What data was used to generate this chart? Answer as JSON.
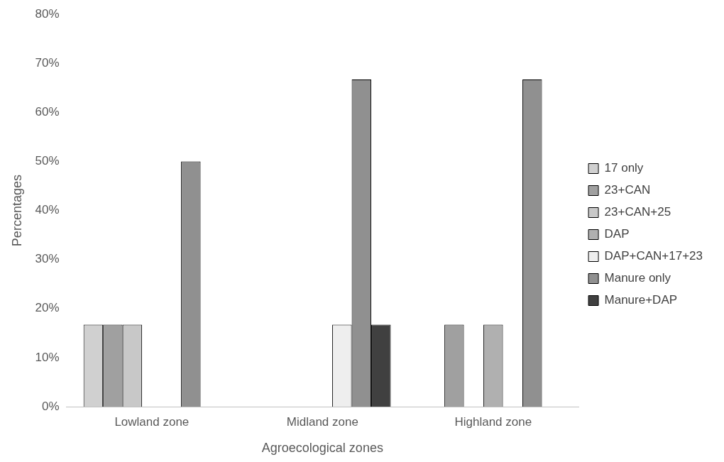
{
  "chart_data": {
    "type": "bar",
    "xlabel": "Agroecological zones",
    "ylabel": "Percentages",
    "categories": [
      "Lowland zone",
      "Midland zone",
      "Highland zone"
    ],
    "series": [
      {
        "name": "17 only",
        "color": "#d0d0d0",
        "values": [
          16.7,
          null,
          null
        ]
      },
      {
        "name": "23+CAN",
        "color": "#a0a0a0",
        "values": [
          16.7,
          null,
          16.7
        ]
      },
      {
        "name": "23+CAN+25",
        "color": "#c8c8c8",
        "values": [
          16.7,
          null,
          null
        ]
      },
      {
        "name": "DAP",
        "color": "#b0b0b0",
        "values": [
          null,
          null,
          16.7
        ]
      },
      {
        "name": "DAP+CAN+17+23",
        "color": "#eeeeee",
        "values": [
          null,
          16.7,
          null
        ]
      },
      {
        "name": "Manure only",
        "color": "#909090",
        "values": [
          50,
          66.7,
          66.7
        ]
      },
      {
        "name": "Manure+DAP",
        "color": "#404040",
        "values": [
          null,
          16.7,
          null
        ]
      }
    ],
    "ylim": [
      0,
      80
    ],
    "yticks": [
      {
        "value": 0,
        "label": "0%"
      },
      {
        "value": 10,
        "label": "10%"
      },
      {
        "value": 20,
        "label": "20%"
      },
      {
        "value": 30,
        "label": "30%"
      },
      {
        "value": 40,
        "label": "40%"
      },
      {
        "value": 50,
        "label": "50%"
      },
      {
        "value": 60,
        "label": "60%"
      },
      {
        "value": 70,
        "label": "70%"
      },
      {
        "value": 80,
        "label": "80%"
      }
    ],
    "grid": false,
    "legend": "right"
  }
}
